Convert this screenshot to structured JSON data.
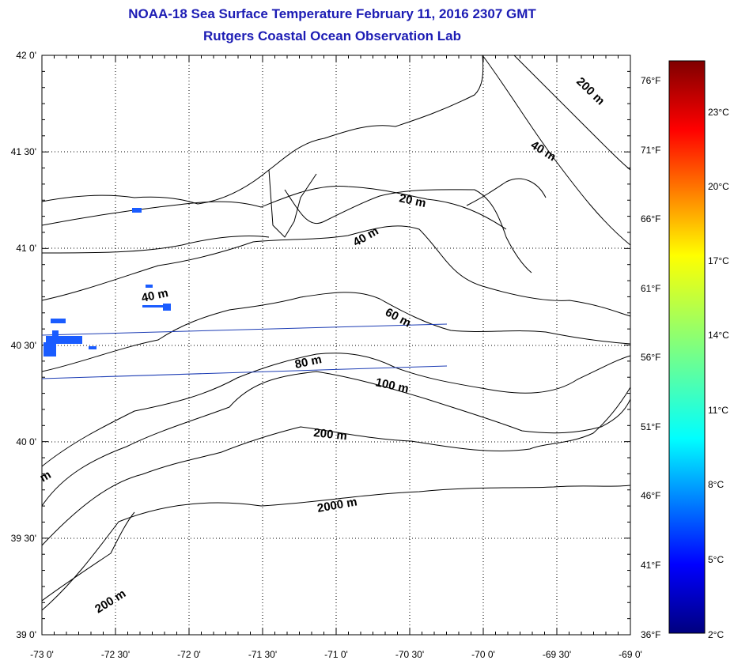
{
  "title": {
    "line1": "NOAA-18 Sea Surface Temperature February 11, 2016 2307 GMT",
    "line2": "Rutgers Coastal Ocean Observation Lab"
  },
  "lat_ticks": [
    "42 0'",
    "41 30'",
    "41 0'",
    "40 30'",
    "40 0'",
    "39 30'",
    "39 0'"
  ],
  "lon_ticks": [
    "-73 0'",
    "-72 30'",
    "-72 0'",
    "-71 30'",
    "-71 0'",
    "-70 30'",
    "-70 0'",
    "-69 30'",
    "-69 0'"
  ],
  "fahrenheit_ticks": [
    "76°F",
    "71°F",
    "66°F",
    "61°F",
    "56°F",
    "51°F",
    "46°F",
    "41°F",
    "36°F"
  ],
  "celsius_ticks": [
    "23°C",
    "20°C",
    "17°C",
    "14°C",
    "11°C",
    "8°C",
    "5°C",
    "2°C"
  ],
  "contour_labels": {
    "c200_ne": "200 m",
    "c40_ne": "40 m",
    "c20": "20 m",
    "c40_mid": "40 m",
    "c40_w": "40 m",
    "c60": "60 m",
    "c80": "80 m",
    "c100": "100 m",
    "c200": "200 m",
    "c2000": "2000 m",
    "c200_sw": "200 m",
    "cm_edge": "m"
  },
  "colors": {
    "title": "#1c1cb4",
    "sst_cold": "#1a5cff",
    "track": "#1c3cb4"
  }
}
